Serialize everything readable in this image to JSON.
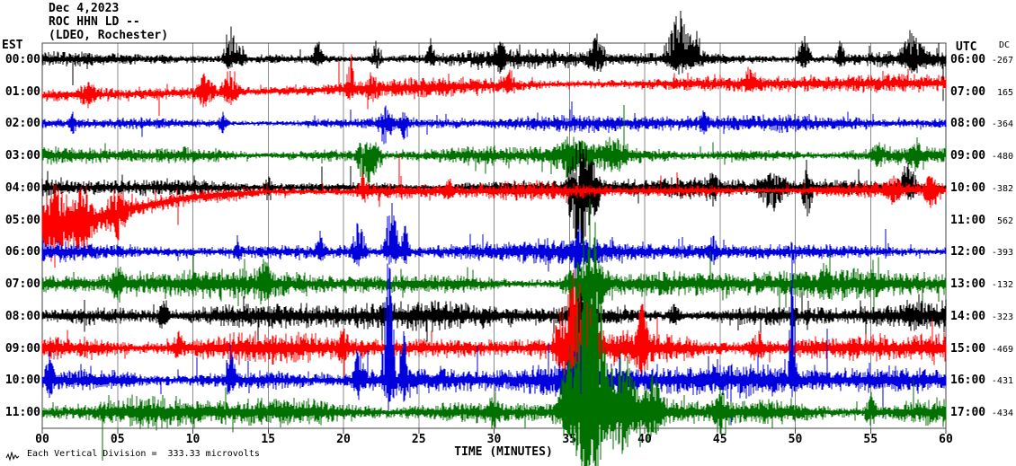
{
  "chart_data": {
    "type": "line",
    "subtype": "helicorder-seismogram",
    "title": "Dec 4,2023",
    "station_line": "ROC HHN LD --",
    "location_line": "(LDEO, Rochester)",
    "left_axis_header": "EST",
    "right_axis_header": "UTC",
    "dc_header": "DC",
    "xlabel": "TIME (MINUTES)",
    "caption": "Each Vertical Division =  333.33 microvolts",
    "x_range_minutes": [
      0,
      60
    ],
    "x_ticks": [
      "00",
      "05",
      "10",
      "15",
      "20",
      "25",
      "30",
      "35",
      "40",
      "45",
      "50",
      "55",
      "60"
    ],
    "grid": true,
    "grid_interval_minutes": 5,
    "legend_position": "none",
    "trace_color_cycle": [
      "#000000",
      "#ff0000",
      "#0000dd",
      "#007000"
    ],
    "grid_color": "#8c8c8c",
    "frame_color": "#444444",
    "rows": [
      {
        "est": "00:00",
        "utc": "06:00",
        "dc": -267,
        "color": "#000000",
        "amp_env": [
          [
            0,
            7
          ],
          [
            28,
            8
          ],
          [
            36,
            11
          ],
          [
            46,
            9
          ],
          [
            60,
            10
          ]
        ],
        "events": [
          [
            12.5,
            0.6,
            40,
            10
          ],
          [
            13.2,
            0.4,
            22,
            8
          ],
          [
            18.3,
            0.5,
            20,
            8
          ],
          [
            22.2,
            0.5,
            24,
            10
          ],
          [
            25.8,
            0.4,
            18,
            6
          ],
          [
            30.4,
            0.5,
            20,
            8
          ],
          [
            36.8,
            0.7,
            26,
            10
          ],
          [
            42.3,
            1.2,
            55,
            12
          ],
          [
            43.5,
            0.6,
            30,
            8
          ],
          [
            50.6,
            0.6,
            28,
            10
          ],
          [
            53,
            0.4,
            18,
            6
          ],
          [
            57.8,
            1.0,
            38,
            12
          ]
        ]
      },
      {
        "est": "01:00",
        "utc": "07:00",
        "dc": 165,
        "color": "#ff0000",
        "amp_env": [
          [
            0,
            9
          ],
          [
            10,
            10
          ],
          [
            35,
            10
          ],
          [
            60,
            10
          ]
        ],
        "drift": [
          [
            0,
            5
          ],
          [
            15,
            0
          ],
          [
            35,
            -8
          ],
          [
            60,
            -9
          ]
        ],
        "events": [
          [
            3,
            0.8,
            16,
            12
          ],
          [
            10.8,
            0.8,
            20,
            14
          ],
          [
            12.5,
            0.8,
            30,
            12
          ],
          [
            20.5,
            0.4,
            45,
            10
          ],
          [
            22,
            0.5,
            16,
            10
          ],
          [
            31,
            0.5,
            18,
            8
          ],
          [
            47,
            0.5,
            16,
            8
          ]
        ]
      },
      {
        "est": "02:00",
        "utc": "08:00",
        "dc": -364,
        "color": "#0000dd",
        "amp_env": [
          [
            0,
            8
          ],
          [
            60,
            9
          ]
        ],
        "events": [
          [
            2,
            0.3,
            10,
            12
          ],
          [
            12,
            0.4,
            12,
            10
          ],
          [
            22.8,
            0.7,
            16,
            24
          ],
          [
            24,
            0.4,
            12,
            18
          ],
          [
            44,
            0.4,
            12,
            10
          ]
        ]
      },
      {
        "est": "03:00",
        "utc": "09:00",
        "dc": -480,
        "color": "#007000",
        "amp_env": [
          [
            0,
            9
          ],
          [
            32,
            10
          ],
          [
            36,
            14
          ],
          [
            40,
            10
          ],
          [
            60,
            10
          ]
        ],
        "events": [
          [
            21.5,
            0.8,
            18,
            40
          ],
          [
            22.3,
            0.4,
            14,
            26
          ],
          [
            35,
            1.5,
            18,
            18
          ],
          [
            38,
            1.0,
            16,
            16
          ],
          [
            55.5,
            0.5,
            14,
            12
          ],
          [
            58,
            0.5,
            16,
            14
          ]
        ]
      },
      {
        "est": "04:00",
        "utc": "10:00",
        "dc": -382,
        "color": "#000000",
        "amp_env": [
          [
            0,
            9
          ],
          [
            60,
            10
          ]
        ],
        "events": [
          [
            15,
            0.4,
            14,
            20
          ],
          [
            35.6,
            1.0,
            55,
            90
          ],
          [
            36.5,
            0.8,
            30,
            40
          ],
          [
            44.5,
            0.4,
            16,
            20
          ],
          [
            48.5,
            1.2,
            18,
            26
          ],
          [
            50.8,
            0.5,
            20,
            40
          ],
          [
            57.5,
            0.8,
            28,
            14
          ]
        ]
      },
      {
        "est": "05:00",
        "utc": "11:00",
        "dc": 562,
        "color": "#ff0000",
        "amp_env": [
          [
            0,
            20
          ],
          [
            3,
            17
          ],
          [
            7,
            12
          ],
          [
            12,
            10
          ],
          [
            60,
            9
          ]
        ],
        "drift": [
          [
            0,
            7
          ],
          [
            3,
            2
          ],
          [
            6,
            -13
          ],
          [
            10,
            -25
          ],
          [
            15,
            -31
          ],
          [
            60,
            -33
          ]
        ],
        "events": [
          [
            0.8,
            1.2,
            30,
            35
          ],
          [
            2.5,
            1.0,
            25,
            30
          ],
          [
            5,
            0.8,
            20,
            20
          ],
          [
            21.3,
            0.5,
            20,
            8
          ],
          [
            27,
            0.4,
            12,
            10
          ],
          [
            56.5,
            0.8,
            14,
            12
          ],
          [
            59,
            0.6,
            16,
            20
          ]
        ]
      },
      {
        "est": "06:00",
        "utc": "12:00",
        "dc": -393,
        "color": "#0000dd",
        "amp_env": [
          [
            0,
            11
          ],
          [
            60,
            12
          ]
        ],
        "events": [
          [
            13,
            0.3,
            16,
            10
          ],
          [
            18.5,
            0.4,
            20,
            10
          ],
          [
            21,
            0.6,
            40,
            14
          ],
          [
            23.2,
            0.6,
            65,
            18
          ],
          [
            24.1,
            0.4,
            30,
            12
          ],
          [
            35.6,
            0.6,
            25,
            20
          ],
          [
            44.5,
            0.4,
            18,
            12
          ]
        ]
      },
      {
        "est": "07:00",
        "utc": "13:00",
        "dc": -132,
        "color": "#007000",
        "amp_env": [
          [
            0,
            14
          ],
          [
            60,
            15
          ]
        ],
        "events": [
          [
            5,
            0.5,
            16,
            14
          ],
          [
            14.8,
            0.5,
            22,
            22
          ],
          [
            35.8,
            1.5,
            25,
            45
          ],
          [
            37,
            0.8,
            20,
            30
          ],
          [
            52,
            0.5,
            18,
            16
          ]
        ]
      },
      {
        "est": "08:00",
        "utc": "14:00",
        "dc": -323,
        "color": "#000000",
        "amp_env": [
          [
            0,
            14
          ],
          [
            35,
            15
          ],
          [
            60,
            15
          ]
        ],
        "events": [
          [
            8,
            0.5,
            16,
            12
          ],
          [
            23,
            0.4,
            14,
            12
          ],
          [
            35.8,
            1.2,
            18,
            18
          ],
          [
            42,
            0.5,
            14,
            12
          ]
        ]
      },
      {
        "est": "09:00",
        "utc": "15:00",
        "dc": -469,
        "color": "#ff0000",
        "amp_env": [
          [
            0,
            16
          ],
          [
            60,
            17
          ]
        ],
        "events": [
          [
            9,
            0.4,
            18,
            12
          ],
          [
            20,
            0.5,
            20,
            14
          ],
          [
            34.8,
            1.0,
            60,
            40
          ],
          [
            35.4,
            0.6,
            110,
            50
          ],
          [
            36.5,
            0.8,
            50,
            30
          ],
          [
            39.8,
            0.5,
            55,
            25
          ],
          [
            47.5,
            0.6,
            20,
            16
          ]
        ]
      },
      {
        "est": "10:00",
        "utc": "16:00",
        "dc": -431,
        "color": "#0000dd",
        "amp_env": [
          [
            0,
            16
          ],
          [
            60,
            17
          ]
        ],
        "events": [
          [
            0.5,
            0.4,
            30,
            14
          ],
          [
            12.5,
            0.4,
            40,
            16
          ],
          [
            21,
            0.5,
            50,
            18
          ],
          [
            23,
            0.5,
            170,
            25
          ],
          [
            24,
            0.3,
            60,
            18
          ],
          [
            35.8,
            0.8,
            40,
            35
          ],
          [
            49.8,
            0.3,
            150,
            20
          ]
        ]
      },
      {
        "est": "11:00",
        "utc": "17:00",
        "dc": -434,
        "color": "#007000",
        "amp_env": [
          [
            0,
            16
          ],
          [
            60,
            17
          ]
        ],
        "events": [
          [
            30,
            0.5,
            20,
            16
          ],
          [
            35.9,
            1.8,
            140,
            58
          ],
          [
            36.6,
            1.0,
            200,
            62
          ],
          [
            38.5,
            1.5,
            70,
            45
          ],
          [
            40.5,
            0.8,
            40,
            30
          ],
          [
            45,
            0.6,
            26,
            22
          ],
          [
            55,
            0.5,
            22,
            18
          ]
        ]
      }
    ]
  }
}
